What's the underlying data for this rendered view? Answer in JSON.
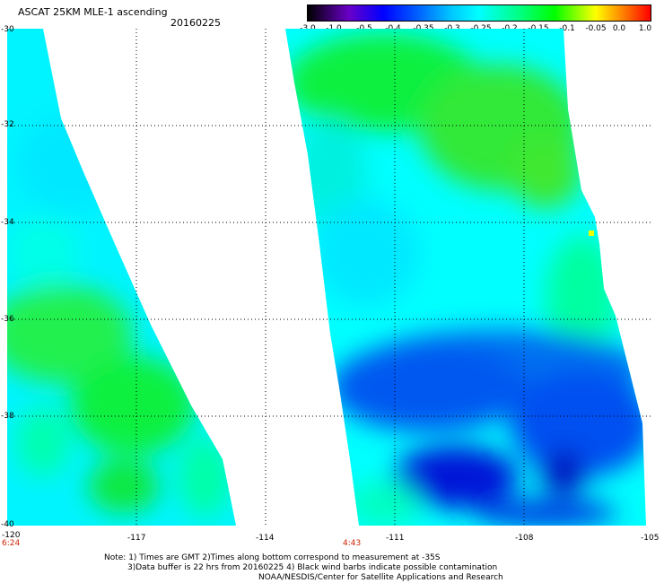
{
  "header": {
    "title": "ASCAT 25KM MLE-1 ascending",
    "date": "20160225"
  },
  "colorbar": {
    "labels": [
      "-3.0",
      "-1.0",
      "-0.5",
      "-0.4",
      "-0.35",
      "-0.3",
      "-0.25",
      "-0.2",
      "-0.15",
      "-0.1",
      "-0.05",
      "0.0",
      "1.0"
    ]
  },
  "map": {
    "lat_ticks": [
      "-30",
      "-32",
      "-34",
      "-36",
      "-38",
      "-40"
    ],
    "lon_ticks": [
      "-120",
      "-117",
      "-114",
      "-111",
      "-108",
      "-105"
    ],
    "swath_times": [
      "6:24",
      "4:43"
    ],
    "colors": {
      "deep_blue": "#0018d8",
      "blue": "#0050f0",
      "cyan": "#00f0ff",
      "aqua_green": "#00ffa0",
      "green": "#10f030",
      "yellow": "#f0ff00"
    }
  },
  "notes": {
    "line1": "Note: 1) Times are GMT 2)Times along bottom correspond to measurement at -35S",
    "line2": "3)Data buffer is 22 hrs from 20160225 4) Black wind barbs indicate possible contamination",
    "line3": "NOAA/NESDIS/Center for Satellite Applications and Research"
  }
}
